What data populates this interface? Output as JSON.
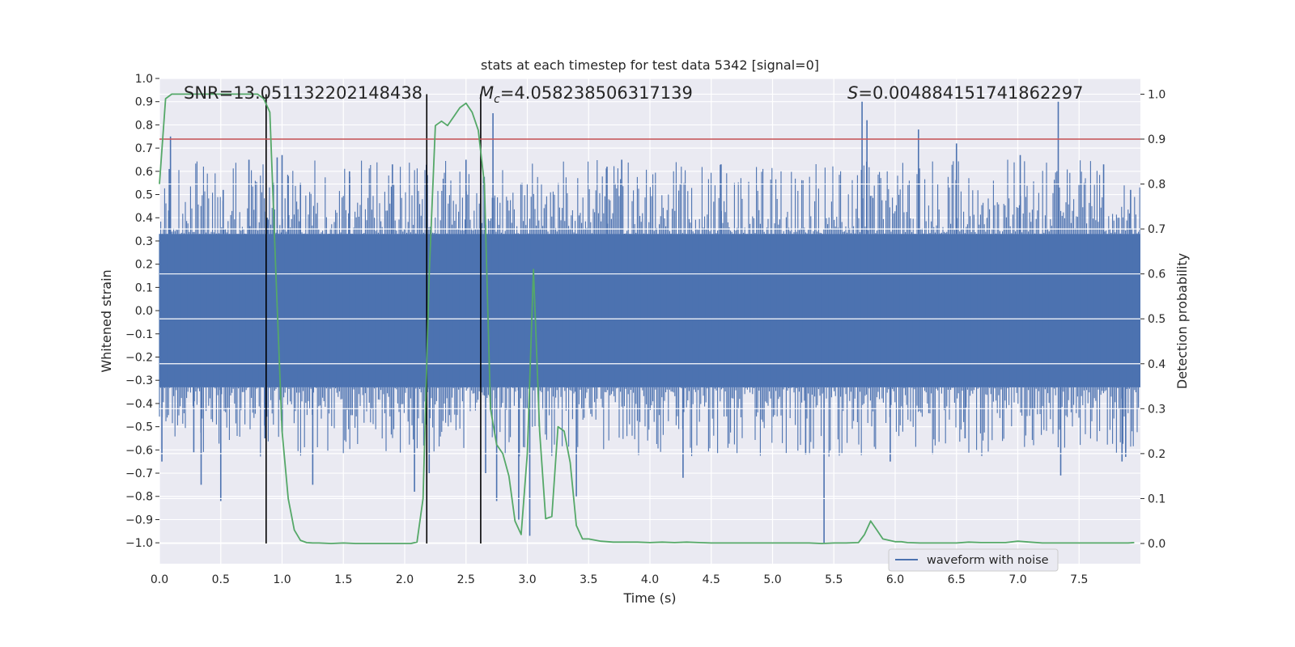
{
  "chart_data": {
    "type": "line",
    "title": "stats at each timestep for test data 5342 [signal=0]",
    "xlabel": "Time (s)",
    "ylabel": "Whitened strain",
    "y2label": "Detection probability",
    "xlim": [
      0.0,
      8.0
    ],
    "ylim": [
      -1.09,
      1.0
    ],
    "y2lim": [
      -0.045,
      1.035
    ],
    "x_ticks": [
      "0.0",
      "0.5",
      "1.0",
      "1.5",
      "2.0",
      "2.5",
      "3.0",
      "3.5",
      "4.0",
      "4.5",
      "5.0",
      "5.5",
      "6.0",
      "6.5",
      "7.0",
      "7.5"
    ],
    "y_ticks": [
      "1.0",
      "0.9",
      "0.8",
      "0.7",
      "0.6",
      "0.5",
      "0.4",
      "0.3",
      "0.2",
      "0.1",
      "0.0",
      "−0.1",
      "−0.2",
      "−0.3",
      "−0.4",
      "−0.5",
      "−0.6",
      "−0.7",
      "−0.8",
      "−0.9",
      "−1.0"
    ],
    "y2_ticks": [
      "1.0",
      "0.9",
      "0.8",
      "0.7",
      "0.6",
      "0.5",
      "0.4",
      "0.3",
      "0.2",
      "0.1",
      "0.0"
    ],
    "annotations": {
      "snr": "SNR=13.051132202148438",
      "mc": "=4.058238506317139",
      "mc_symbol": "M",
      "mc_sub": "c",
      "s": "=0.004884151741862297",
      "s_symbol": "S"
    },
    "threshold_prob": 0.9,
    "vlines": [
      0.87,
      2.18,
      2.62
    ],
    "legend": {
      "label": "waveform with noise",
      "position": "lower right"
    },
    "waveform": {
      "name": "waveform with noise",
      "color": "#4c72b0",
      "core_amplitude": 0.33,
      "spikes": [
        {
          "x": 0.02,
          "y": -0.65
        },
        {
          "x": 0.08,
          "y": 0.61
        },
        {
          "x": 0.09,
          "y": 0.75
        },
        {
          "x": 0.28,
          "y": -0.61
        },
        {
          "x": 0.34,
          "y": -0.75
        },
        {
          "x": 0.5,
          "y": -0.82
        },
        {
          "x": 0.52,
          "y": 0.52
        },
        {
          "x": 0.73,
          "y": 0.65
        },
        {
          "x": 0.86,
          "y": -0.55
        },
        {
          "x": 0.88,
          "y": 0.4
        },
        {
          "x": 0.93,
          "y": 0.55
        },
        {
          "x": 0.96,
          "y": 0.66
        },
        {
          "x": 1.0,
          "y": 0.67
        },
        {
          "x": 1.05,
          "y": 0.58
        },
        {
          "x": 1.15,
          "y": 0.55
        },
        {
          "x": 1.25,
          "y": -0.75
        },
        {
          "x": 1.55,
          "y": 0.6
        },
        {
          "x": 1.9,
          "y": 0.63
        },
        {
          "x": 2.08,
          "y": -0.78
        },
        {
          "x": 2.2,
          "y": -0.7
        },
        {
          "x": 2.5,
          "y": 0.65
        },
        {
          "x": 2.66,
          "y": -0.7
        },
        {
          "x": 2.72,
          "y": 0.85
        },
        {
          "x": 2.75,
          "y": -0.82
        },
        {
          "x": 2.93,
          "y": -0.9
        },
        {
          "x": 3.02,
          "y": -0.97
        },
        {
          "x": 3.4,
          "y": -0.8
        },
        {
          "x": 3.65,
          "y": 0.62
        },
        {
          "x": 3.77,
          "y": 0.65
        },
        {
          "x": 4.27,
          "y": -0.72
        },
        {
          "x": 4.58,
          "y": 0.63
        },
        {
          "x": 5.27,
          "y": -0.62
        },
        {
          "x": 5.42,
          "y": -1.0
        },
        {
          "x": 5.73,
          "y": 0.9
        },
        {
          "x": 5.77,
          "y": 0.82
        },
        {
          "x": 5.96,
          "y": -0.65
        },
        {
          "x": 6.19,
          "y": 0.78
        },
        {
          "x": 6.5,
          "y": 0.72
        },
        {
          "x": 6.57,
          "y": -0.55
        },
        {
          "x": 7.02,
          "y": 0.67
        },
        {
          "x": 7.33,
          "y": 0.9
        },
        {
          "x": 7.35,
          "y": -0.71
        },
        {
          "x": 7.7,
          "y": 0.63
        },
        {
          "x": 7.85,
          "y": -0.65
        },
        {
          "x": 7.88,
          "y": -0.63
        },
        {
          "x": 7.92,
          "y": 0.52
        }
      ]
    },
    "probability": {
      "name": "Detection probability",
      "color": "#55a868",
      "x": [
        0.0,
        0.05,
        0.1,
        0.15,
        0.2,
        0.25,
        0.3,
        0.35,
        0.4,
        0.45,
        0.5,
        0.55,
        0.6,
        0.65,
        0.7,
        0.75,
        0.8,
        0.85,
        0.9,
        0.95,
        1.0,
        1.05,
        1.1,
        1.15,
        1.2,
        1.25,
        1.3,
        1.4,
        1.5,
        1.6,
        1.7,
        1.8,
        1.9,
        2.0,
        2.05,
        2.1,
        2.15,
        2.2,
        2.25,
        2.3,
        2.35,
        2.4,
        2.45,
        2.5,
        2.55,
        2.6,
        2.65,
        2.7,
        2.75,
        2.8,
        2.85,
        2.9,
        2.95,
        3.0,
        3.05,
        3.1,
        3.15,
        3.2,
        3.25,
        3.3,
        3.35,
        3.4,
        3.45,
        3.5,
        3.6,
        3.7,
        3.8,
        3.9,
        4.0,
        4.1,
        4.2,
        4.3,
        4.4,
        4.5,
        4.6,
        4.7,
        4.8,
        4.9,
        5.0,
        5.1,
        5.2,
        5.3,
        5.4,
        5.5,
        5.6,
        5.7,
        5.75,
        5.8,
        5.85,
        5.9,
        6.0,
        6.05,
        6.1,
        6.2,
        6.3,
        6.4,
        6.5,
        6.6,
        6.7,
        6.8,
        6.9,
        7.0,
        7.1,
        7.2,
        7.3,
        7.4,
        7.5,
        7.6,
        7.7,
        7.8,
        7.9,
        7.95
      ],
      "y": [
        0.8,
        0.99,
        1.0,
        1.0,
        1.0,
        1.0,
        1.0,
        1.0,
        1.0,
        1.0,
        1.0,
        1.0,
        1.0,
        1.0,
        1.0,
        1.0,
        1.0,
        0.99,
        0.96,
        0.6,
        0.25,
        0.1,
        0.03,
        0.007,
        0.002,
        0.001,
        0.001,
        0.0,
        0.001,
        0.0,
        0.0,
        0.0,
        0.0,
        0.0,
        0.0,
        0.003,
        0.1,
        0.6,
        0.93,
        0.94,
        0.93,
        0.95,
        0.97,
        0.98,
        0.96,
        0.92,
        0.8,
        0.3,
        0.22,
        0.2,
        0.15,
        0.05,
        0.02,
        0.2,
        0.61,
        0.25,
        0.055,
        0.06,
        0.26,
        0.25,
        0.18,
        0.04,
        0.01,
        0.01,
        0.005,
        0.003,
        0.003,
        0.003,
        0.002,
        0.003,
        0.002,
        0.003,
        0.002,
        0.001,
        0.001,
        0.001,
        0.001,
        0.001,
        0.001,
        0.001,
        0.001,
        0.001,
        0.0,
        0.001,
        0.001,
        0.002,
        0.02,
        0.05,
        0.03,
        0.01,
        0.004,
        0.004,
        0.002,
        0.001,
        0.001,
        0.001,
        0.001,
        0.003,
        0.002,
        0.002,
        0.002,
        0.005,
        0.003,
        0.001,
        0.001,
        0.001,
        0.001,
        0.001,
        0.001,
        0.001,
        0.001,
        0.002
      ]
    }
  }
}
